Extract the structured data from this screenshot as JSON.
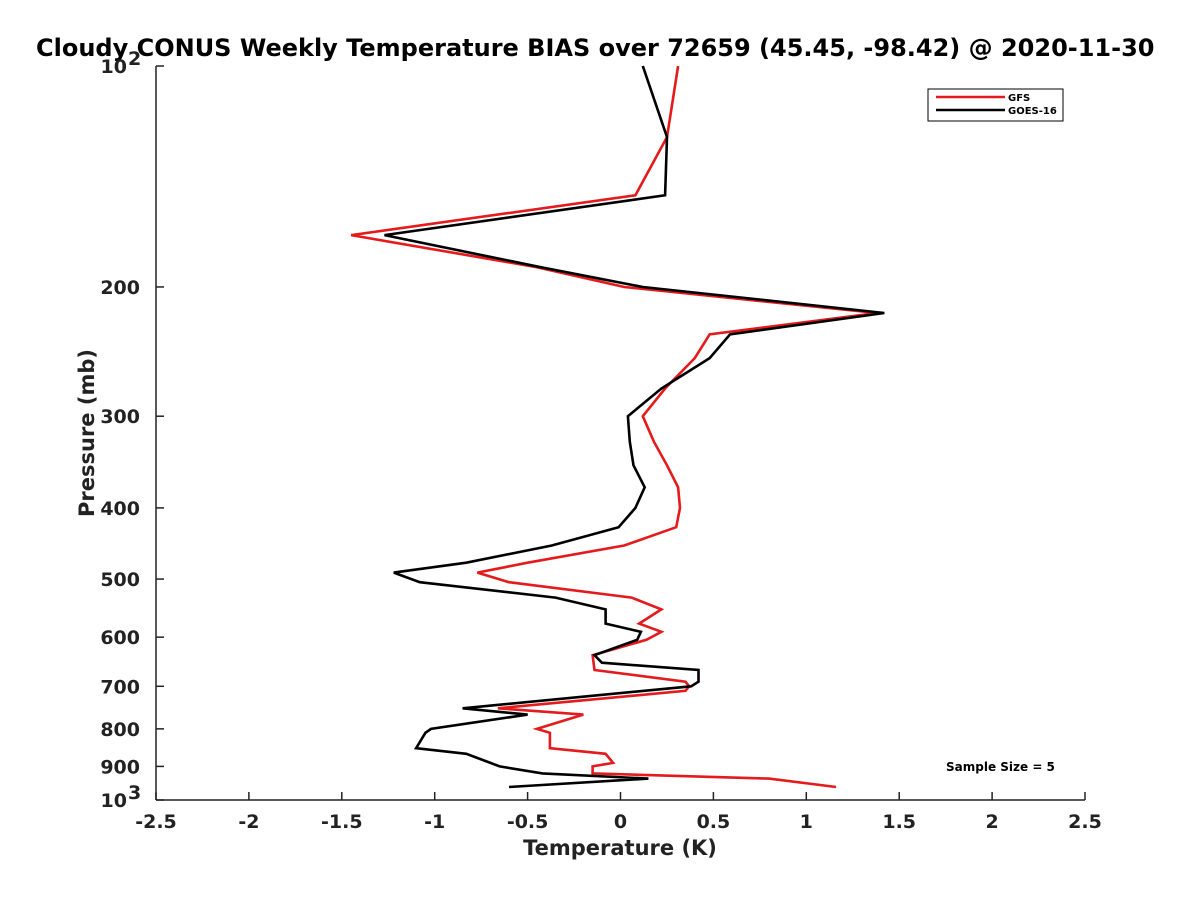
{
  "chart_data": {
    "type": "line",
    "title": "Cloudy CONUS Weekly Temperature BIAS over 72659 (45.45, -98.42) @ 2020-11-30",
    "xlabel": "Temperature (K)",
    "ylabel": "Pressure (mb)",
    "xlim": [
      -2.5,
      2.5
    ],
    "ylim": [
      100,
      1000
    ],
    "y_scale": "log",
    "y_reversed": true,
    "grid": false,
    "legend_position": "top-right",
    "x_ticks": [
      "-2.5",
      "-2",
      "-1.5",
      "-1",
      "-0.5",
      "0",
      "0.5",
      "1",
      "1.5",
      "2",
      "2.5"
    ],
    "y_ticks": [
      {
        "base": "10",
        "exp": "2",
        "value": 100
      },
      {
        "label": "200",
        "value": 200
      },
      {
        "label": "300",
        "value": 300
      },
      {
        "label": "400",
        "value": 400
      },
      {
        "label": "500",
        "value": 500
      },
      {
        "label": "600",
        "value": 600
      },
      {
        "label": "700",
        "value": 700
      },
      {
        "label": "800",
        "value": 800
      },
      {
        "label": "900",
        "value": 900
      },
      {
        "base": "10",
        "exp": "3",
        "value": 1000
      }
    ],
    "annotation": "Sample Size = 5",
    "series": [
      {
        "name": "GFS",
        "color": "#e41a1c",
        "points": [
          [
            0.31,
            100
          ],
          [
            0.25,
            125
          ],
          [
            0.08,
            150
          ],
          [
            -1.45,
            170
          ],
          [
            -0.45,
            188
          ],
          [
            0.02,
            200
          ],
          [
            1.38,
            217
          ],
          [
            0.48,
            232
          ],
          [
            0.4,
            250
          ],
          [
            0.24,
            275
          ],
          [
            0.12,
            300
          ],
          [
            0.18,
            325
          ],
          [
            0.25,
            350
          ],
          [
            0.31,
            375
          ],
          [
            0.32,
            400
          ],
          [
            0.3,
            425
          ],
          [
            0.02,
            450
          ],
          [
            -0.5,
            475
          ],
          [
            -0.77,
            490
          ],
          [
            -0.6,
            505
          ],
          [
            0.06,
            530
          ],
          [
            0.22,
            550
          ],
          [
            0.1,
            575
          ],
          [
            0.22,
            590
          ],
          [
            0.14,
            605
          ],
          [
            -0.15,
            635
          ],
          [
            -0.14,
            665
          ],
          [
            0.35,
            690
          ],
          [
            0.37,
            700
          ],
          [
            0.35,
            710
          ],
          [
            -0.66,
            750
          ],
          [
            -0.2,
            765
          ],
          [
            -0.45,
            800
          ],
          [
            -0.38,
            810
          ],
          [
            -0.38,
            850
          ],
          [
            -0.08,
            865
          ],
          [
            -0.04,
            890
          ],
          [
            -0.15,
            900
          ],
          [
            -0.15,
            920
          ],
          [
            0.8,
            935
          ],
          [
            1.16,
            960
          ]
        ]
      },
      {
        "name": "GOES-16",
        "color": "#000000",
        "points": [
          [
            0.12,
            100
          ],
          [
            0.25,
            125
          ],
          [
            0.24,
            150
          ],
          [
            -1.27,
            170
          ],
          [
            -0.43,
            188
          ],
          [
            0.12,
            200
          ],
          [
            1.42,
            217
          ],
          [
            0.59,
            232
          ],
          [
            0.48,
            250
          ],
          [
            0.22,
            275
          ],
          [
            0.04,
            300
          ],
          [
            0.05,
            325
          ],
          [
            0.07,
            350
          ],
          [
            0.13,
            375
          ],
          [
            0.08,
            400
          ],
          [
            -0.01,
            425
          ],
          [
            -0.37,
            450
          ],
          [
            -0.83,
            475
          ],
          [
            -1.22,
            490
          ],
          [
            -1.08,
            505
          ],
          [
            -0.35,
            530
          ],
          [
            -0.08,
            550
          ],
          [
            -0.08,
            575
          ],
          [
            0.11,
            590
          ],
          [
            0.09,
            605
          ],
          [
            -0.14,
            635
          ],
          [
            -0.1,
            650
          ],
          [
            0.42,
            665
          ],
          [
            0.42,
            690
          ],
          [
            0.38,
            700
          ],
          [
            -0.85,
            750
          ],
          [
            -0.5,
            765
          ],
          [
            -1.02,
            800
          ],
          [
            -1.05,
            810
          ],
          [
            -1.1,
            850
          ],
          [
            -0.83,
            865
          ],
          [
            -0.7,
            890
          ],
          [
            -0.65,
            900
          ],
          [
            -0.42,
            920
          ],
          [
            0.15,
            935
          ],
          [
            -0.6,
            960
          ]
        ]
      }
    ]
  }
}
